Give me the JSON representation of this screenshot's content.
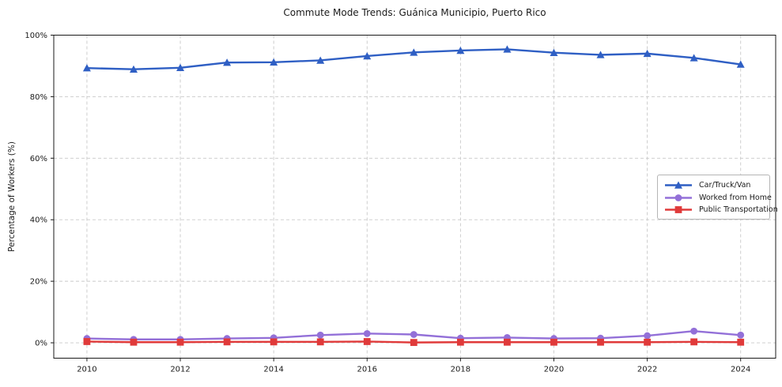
{
  "figure": {
    "title": "Commute Mode Trends: Guánica Municipio, Puerto Rico",
    "ylabel": "Percentage of Workers (%)"
  },
  "chart_data": {
    "type": "line",
    "title": "Commute Mode Trends: Guánica Municipio, Puerto Rico",
    "xlabel": "",
    "ylabel": "Percentage of Workers (%)",
    "x": [
      2010,
      2011,
      2012,
      2013,
      2014,
      2015,
      2016,
      2017,
      2018,
      2019,
      2020,
      2021,
      2022,
      2023,
      2024
    ],
    "series": [
      {
        "name": "Car/Truck/Van",
        "color": "#2f5fc4",
        "marker": "triangle",
        "values": [
          89.3,
          88.9,
          89.4,
          91.1,
          91.2,
          91.8,
          93.2,
          94.4,
          95.0,
          95.4,
          94.3,
          93.6,
          94.0,
          92.6,
          90.5
        ]
      },
      {
        "name": "Worked from Home",
        "color": "#9370d8",
        "marker": "circle",
        "values": [
          1.4,
          1.1,
          1.1,
          1.4,
          1.6,
          2.5,
          3.0,
          2.7,
          1.5,
          1.7,
          1.4,
          1.5,
          2.3,
          3.8,
          2.5
        ]
      },
      {
        "name": "Public Transportation",
        "color": "#e03a3a",
        "marker": "square",
        "values": [
          0.4,
          0.2,
          0.2,
          0.3,
          0.3,
          0.3,
          0.4,
          0.1,
          0.2,
          0.2,
          0.2,
          0.2,
          0.2,
          0.3,
          0.2
        ]
      }
    ],
    "xticks": [
      "2010",
      "2012",
      "2014",
      "2016",
      "2018",
      "2020",
      "2022",
      "2024"
    ],
    "xtick_values": [
      2010,
      2012,
      2014,
      2016,
      2018,
      2020,
      2022,
      2024
    ],
    "yticks": [
      "0%",
      "20%",
      "40%",
      "60%",
      "80%",
      "100%"
    ],
    "ytick_values": [
      0,
      20,
      40,
      60,
      80,
      100
    ],
    "ylim": [
      -5,
      100
    ],
    "xlim": [
      2009.29,
      2024.75
    ],
    "grid": "dashed",
    "grid_color": "#c9c9c9",
    "axis_color": "#1a1a1a",
    "legend_position": "center-right"
  }
}
